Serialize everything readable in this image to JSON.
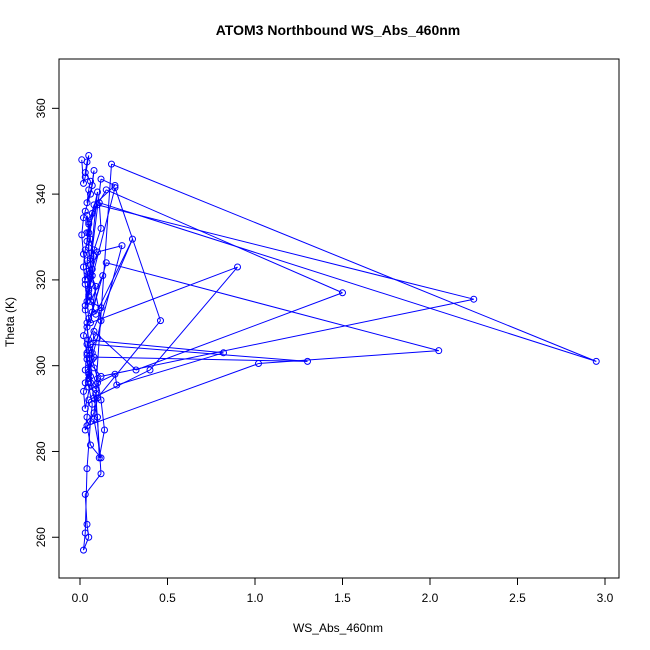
{
  "chart_data": {
    "type": "line",
    "title": "ATOM3 Northbound WS_Abs_460nm",
    "xlabel": "WS_Abs_460nm",
    "ylabel": "Theta (K)",
    "xlim": [
      -0.12,
      3.08
    ],
    "ylim": [
      250.5,
      371.5
    ],
    "xticks": [
      0.0,
      0.5,
      1.0,
      1.5,
      2.0,
      2.5,
      3.0
    ],
    "xtick_labels": [
      "0.0",
      "0.5",
      "1.0",
      "1.5",
      "2.0",
      "2.5",
      "3.0"
    ],
    "yticks": [
      260,
      280,
      300,
      320,
      340,
      360
    ],
    "ytick_labels": [
      "260",
      "280",
      "300",
      "320",
      "340",
      "360"
    ],
    "grid": false,
    "colors": {
      "series": "#0000ff",
      "axis": "#000000"
    },
    "series": [
      {
        "markers": "open-circle",
        "x": [
          0.01,
          0.02,
          0.03,
          0.05,
          0.04,
          0.03,
          0.06,
          0.05,
          0.04,
          0.07,
          0.08,
          0.06,
          0.03,
          0.02,
          0.01,
          0.02,
          0.04,
          0.05,
          0.03,
          0.12,
          0.2,
          0.08,
          0.05,
          0.04,
          0.1,
          0.06,
          0.05,
          0.09,
          0.3,
          0.04,
          0.04,
          0.05,
          0.02,
          0.03,
          0.06,
          0.05,
          0.08,
          0.12,
          2.25,
          0.1,
          0.04,
          0.05,
          0.06,
          0.03,
          0.07,
          0.15,
          1.5,
          0.32,
          0.08,
          0.07,
          0.05,
          0.09,
          0.18,
          2.95,
          0.11,
          0.12,
          0.08,
          0.06,
          0.09,
          0.06,
          0.9,
          0.4,
          0.05,
          0.04,
          0.03,
          0.08,
          0.1,
          0.2,
          0.21,
          0.82,
          0.05,
          0.04,
          0.13,
          0.06,
          0.12,
          0.07,
          0.15,
          2.05,
          1.02,
          0.04,
          0.06,
          0.12,
          0.08,
          0.1,
          0.46,
          0.2,
          0.06,
          0.05,
          0.07,
          0.1,
          0.24,
          0.03,
          0.09,
          0.12,
          0.03,
          0.04,
          0.05,
          0.02,
          0.03,
          0.04,
          0.06,
          0.07,
          0.05,
          0.03,
          0.04,
          0.02,
          0.05,
          0.04,
          0.03,
          0.02,
          0.03,
          0.05,
          0.04,
          0.05,
          0.06,
          0.08,
          0.07,
          0.12,
          0.1,
          0.04,
          0.05,
          0.08,
          1.3,
          0.06,
          0.07,
          0.1,
          0.12,
          0.14,
          0.11,
          0.1,
          0.08,
          0.06,
          0.05,
          0.04,
          0.03,
          0.05,
          0.06,
          0.04
        ],
        "y": [
          348.0,
          342.5,
          344.0,
          349.0,
          347.5,
          345.0,
          343.0,
          341.0,
          338.0,
          342.0,
          345.5,
          340.0,
          336.0,
          334.5,
          330.5,
          326.0,
          322.0,
          318.0,
          314.0,
          343.5,
          342.0,
          337.5,
          333.0,
          329.0,
          340.5,
          325.0,
          316.0,
          312.0,
          329.5,
          305.0,
          301.5,
          298.0,
          294.0,
          290.0,
          296.0,
          300.5,
          299.5,
          297.5,
          315.5,
          337.5,
          331.0,
          327.5,
          323.5,
          320.0,
          335.5,
          341.0,
          317.0,
          299.0,
          308.0,
          303.0,
          297.0,
          294.5,
          347.0,
          301.0,
          338.0,
          332.0,
          327.0,
          321.5,
          318.5,
          310.0,
          323.0,
          299.0,
          292.0,
          288.0,
          285.0,
          289.0,
          296.0,
          298.0,
          295.5,
          303.0,
          306.0,
          309.0,
          321.0,
          315.0,
          313.5,
          312.5,
          324.0,
          303.5,
          300.5,
          286.0,
          281.5,
          278.5,
          287.5,
          292.5,
          310.5,
          341.5,
          319.0,
          316.5,
          322.5,
          326.5,
          328.0,
          296.0,
          293.5,
          274.8,
          270.0,
          263.0,
          260.0,
          257.0,
          261.0,
          276.0,
          287.0,
          291.0,
          295.0,
          299.0,
          303.0,
          307.0,
          311.0,
          315.0,
          319.0,
          323.0,
          327.0,
          331.0,
          335.0,
          333.5,
          329.5,
          325.5,
          321.0,
          310.5,
          306.5,
          302.5,
          298.5,
          302.0,
          301.0,
          305.0,
          301.5,
          297.0,
          292.0,
          285.0,
          278.5,
          288.0,
          292.5,
          297.5,
          303.5,
          310.0,
          313.0,
          317.5,
          320.5,
          324.5
        ]
      }
    ]
  }
}
